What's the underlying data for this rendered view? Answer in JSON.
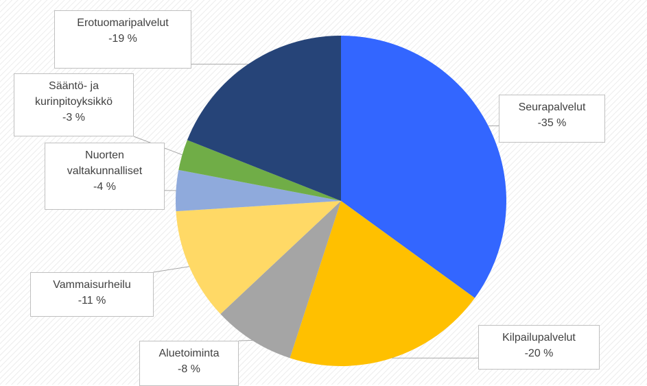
{
  "chart_data": {
    "type": "pie",
    "categories": [
      "Seurapalvelut",
      "Kilpailupalvelut",
      "Aluetoiminta",
      "Vammaisurheilu",
      "Nuorten valtakunnalliset",
      "Sääntö- ja kurinpitoyksikkö",
      "Erotuomaripalvelut"
    ],
    "values": [
      -35,
      -20,
      -8,
      -11,
      -4,
      -3,
      -19
    ],
    "value_labels": [
      "-35 %",
      "-20 %",
      "-8 %",
      "-11 %",
      "-4 %",
      "-3 %",
      "-19 %"
    ],
    "colors": [
      "#3366ff",
      "#ffc000",
      "#a5a5a5",
      "#ffd966",
      "#8faadc",
      "#70ad47",
      "#264478"
    ]
  }
}
